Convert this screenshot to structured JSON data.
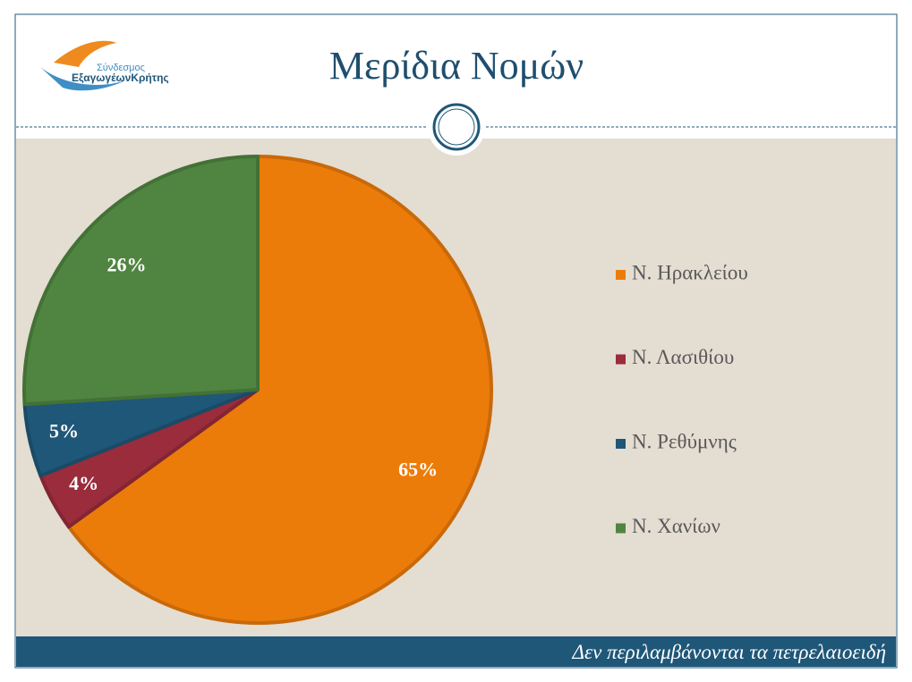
{
  "logo": {
    "line1": "Σύνδεσμος",
    "line2": "ΕξαγωγέωνΚρήτης"
  },
  "chart_data": {
    "type": "pie",
    "title": "Μερίδια Νομών",
    "categories": [
      "Ν. Ηρακλείου",
      "Ν. Λασιθίου",
      "Ν. Ρεθύμνης",
      "Ν. Χανίων"
    ],
    "values": [
      65,
      4,
      5,
      26
    ],
    "value_labels": [
      "65%",
      "4%",
      "5%",
      "26%"
    ],
    "colors": [
      "#ec7c0a",
      "#9a2c3b",
      "#1f5778",
      "#4f8540"
    ],
    "legend": "right",
    "footnote": "Δεν περιλαμβάνονται τα πετρελαιοειδή"
  }
}
